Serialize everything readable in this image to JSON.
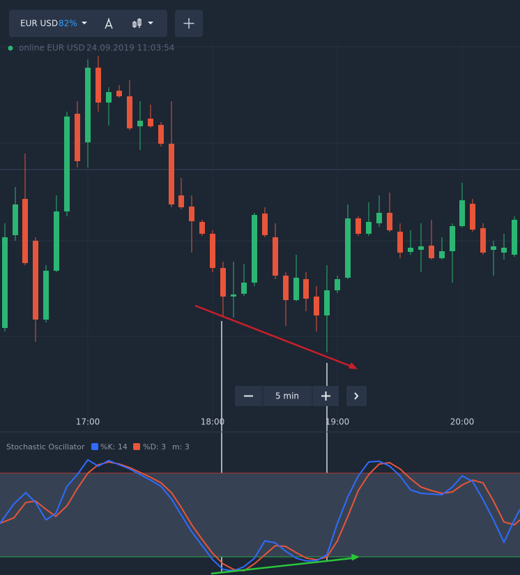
{
  "toolbar": {
    "pair": "EUR USD",
    "payout": "82%"
  },
  "status": {
    "label": "online EUR USD",
    "timestamp": "24.09.2019 11:03:54"
  },
  "zoom": {
    "interval": "5 min"
  },
  "time_axis": [
    "17:00",
    "18:00",
    "19:00",
    "20:00"
  ],
  "indicator": {
    "name": "Stochastic Oscillator",
    "k": "%K: 14",
    "d": "%D: 3",
    "m": "m: 3"
  }
}
